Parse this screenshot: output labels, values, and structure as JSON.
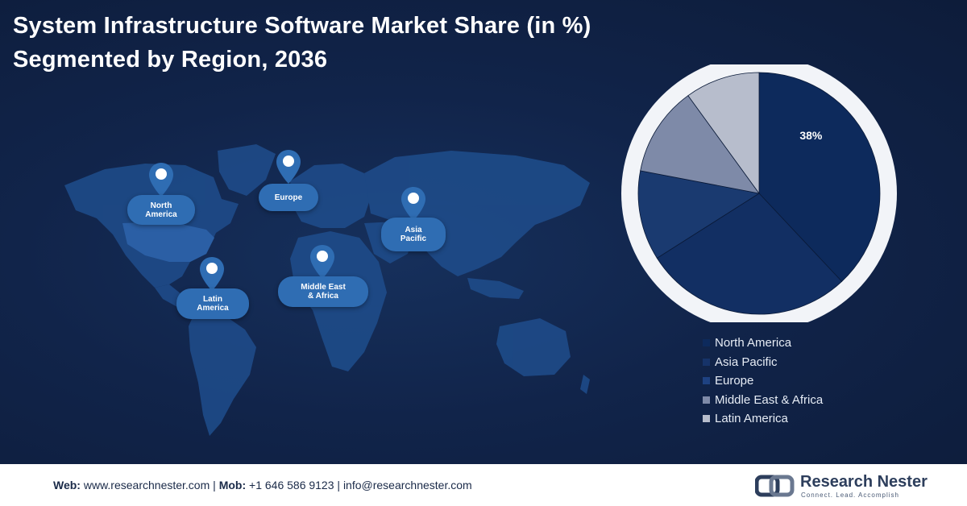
{
  "title": {
    "line1": "System Infrastructure Software Market Share (in %)",
    "line2": "Segmented by Region, 2036"
  },
  "map": {
    "regions": [
      {
        "id": "north-america",
        "label_lines": [
          "North",
          "America"
        ]
      },
      {
        "id": "europe",
        "label_lines": [
          "Europe"
        ]
      },
      {
        "id": "asia-pacific",
        "label_lines": [
          "Asia",
          "Pacific"
        ]
      },
      {
        "id": "latin-america",
        "label_lines": [
          "Latin",
          "America"
        ]
      },
      {
        "id": "middle-east-africa",
        "label_lines": [
          "Middle East",
          "& Africa"
        ]
      }
    ]
  },
  "chart_data": {
    "type": "pie",
    "title": "",
    "slices": [
      {
        "label": "North America",
        "value": 38,
        "color": "#0d2a5c",
        "shown_label": "38%"
      },
      {
        "label": "Asia Pacific",
        "value": 28,
        "color": "#122f63",
        "shown_label": ""
      },
      {
        "label": "Europe",
        "value": 12,
        "color": "#1a3a70",
        "shown_label": ""
      },
      {
        "label": "Middle East & Africa",
        "value": 12,
        "color": "#7e8aa8",
        "shown_label": ""
      },
      {
        "label": "Latin America",
        "value": 10,
        "color": "#b7bdcc",
        "shown_label": ""
      }
    ],
    "legend_position": "bottom-right"
  },
  "legend": [
    {
      "label": "North America",
      "color": "#0d2a5c"
    },
    {
      "label": "Asia Pacific",
      "color": "#163369"
    },
    {
      "label": "Europe",
      "color": "#1e4282"
    },
    {
      "label": "Middle East & Africa",
      "color": "#7e8aa8"
    },
    {
      "label": "Latin America",
      "color": "#b7bdcc"
    }
  ],
  "footer": {
    "web_label": "Web:",
    "web_value": "www.researchnester.com",
    "mob_label": "Mob:",
    "mob_value": "+1 646 586 9123",
    "email_value": "info@researchnester.com",
    "separator": "|",
    "logo_name": "Research Nester",
    "logo_tagline": "Connect. Lead. Accomplish"
  }
}
